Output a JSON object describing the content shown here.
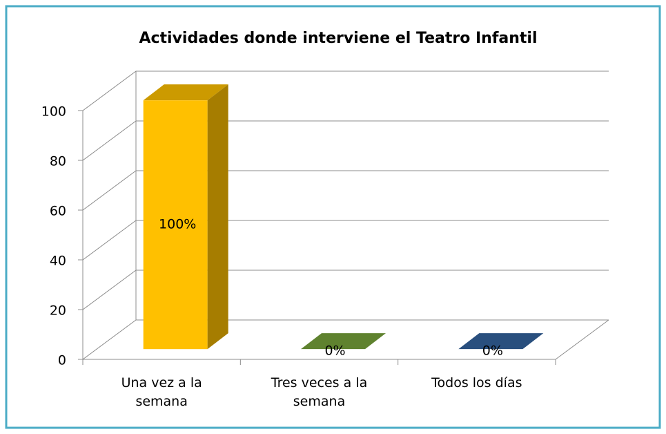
{
  "chart_data": {
    "type": "bar3d",
    "title": "Actividades donde interviene el Teatro Infantil",
    "categories": [
      "Una vez a la semana",
      "Tres veces a la semana",
      "Todos los días"
    ],
    "values": [
      100,
      0,
      0
    ],
    "value_labels": [
      "100%",
      "0%",
      "0%"
    ],
    "colors": [
      "#ffc000",
      "#77a33b",
      "#33639e"
    ],
    "ylim": [
      0,
      100
    ],
    "yticks": [
      0,
      20,
      40,
      60,
      80,
      100
    ],
    "grid": true
  }
}
